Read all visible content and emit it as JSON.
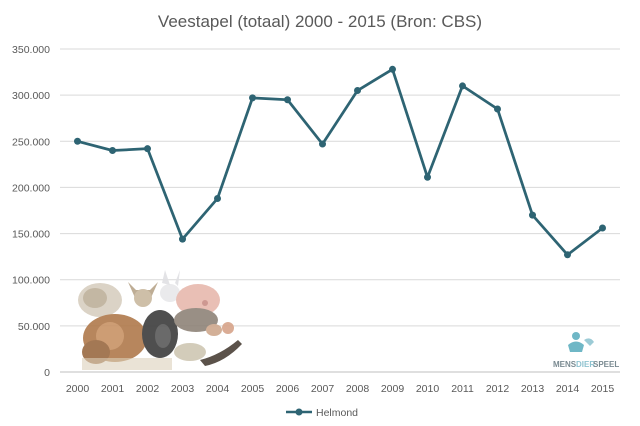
{
  "chart_data": {
    "type": "line",
    "title": "Veestapel (totaal) 2000 - 2015 (Bron: CBS)",
    "xlabel": "",
    "ylabel": "",
    "categories": [
      "2000",
      "2001",
      "2002",
      "2003",
      "2004",
      "2005",
      "2006",
      "2007",
      "2008",
      "2009",
      "2010",
      "2011",
      "2012",
      "2013",
      "2014",
      "2015"
    ],
    "series": [
      {
        "name": "Helmond",
        "color": "#2e6473",
        "values": [
          250000,
          240000,
          242000,
          144000,
          188000,
          297000,
          295000,
          247000,
          305000,
          328000,
          211000,
          310000,
          285000,
          170000,
          127000,
          156000
        ]
      }
    ],
    "ylim": [
      0,
      350000
    ],
    "yticks": [
      "0",
      "50.000",
      "100.000",
      "150.000",
      "200.000",
      "250.000",
      "300.000",
      "350.000"
    ],
    "ytick_values": [
      0,
      50000,
      100000,
      150000,
      200000,
      250000,
      300000,
      350000
    ],
    "grid": true,
    "legend_position": "bottom-center"
  },
  "logo": {
    "text_part1": "MENS",
    "text_part2": "DIER",
    "text_part3": "SPEEL",
    "icon": "figure-with-animal-icon"
  },
  "decoration": {
    "icon": "farm-animals-collage-image"
  }
}
